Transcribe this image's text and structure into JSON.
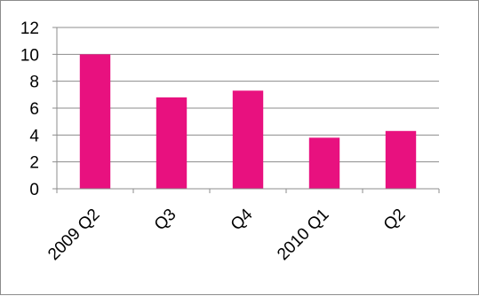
{
  "chart_data": {
    "type": "bar",
    "categories": [
      "2009 Q2",
      "Q3",
      "Q4",
      "2010 Q1",
      "Q2"
    ],
    "values": [
      10.0,
      6.8,
      7.3,
      3.8,
      4.3
    ],
    "ylim": [
      0,
      12
    ],
    "yticks": [
      0,
      2,
      4,
      6,
      8,
      10,
      12
    ],
    "grid": true,
    "legend": "none",
    "bar_color": "#e8117f",
    "grid_color": "#8c8c8c",
    "title": "",
    "xlabel": "",
    "ylabel": ""
  }
}
